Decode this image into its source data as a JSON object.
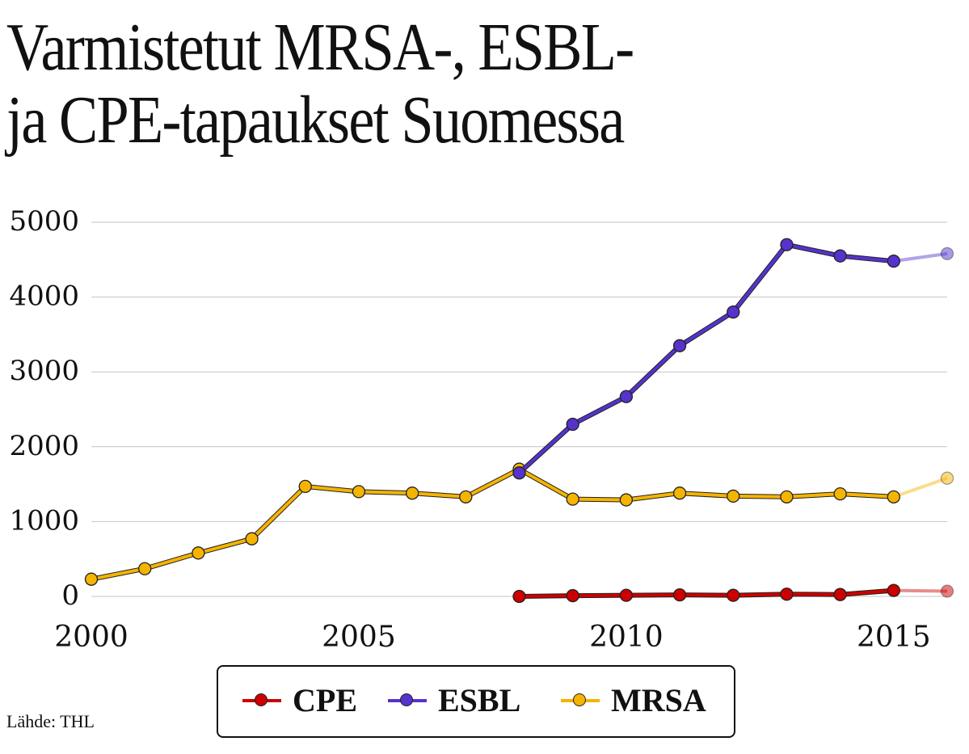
{
  "title_lines": [
    "Varmistetut MRSA-, ESBL-",
    "ja CPE-tapaukset Suomessa"
  ],
  "source": "Lähde: THL",
  "chart_data": {
    "type": "line",
    "title": "Varmistetut MRSA-, ESBL- ja CPE-tapaukset Suomessa",
    "xlabel": "",
    "ylabel": "",
    "xlim": [
      2000,
      2016
    ],
    "ylim": [
      0,
      5000
    ],
    "x_ticks": [
      "2000",
      "2005",
      "2010",
      "2015"
    ],
    "y_ticks": [
      "5000",
      "4000",
      "3000",
      "2000",
      "1000",
      "0"
    ],
    "grid": true,
    "legend_position": "bottom",
    "series": [
      {
        "name": "CPE",
        "color": "#cc0000",
        "x": [
          2008,
          2009,
          2010,
          2011,
          2012,
          2013,
          2014,
          2015,
          2016
        ],
        "y": [
          0,
          10,
          15,
          20,
          15,
          30,
          25,
          80,
          70
        ],
        "last_point_faded": true
      },
      {
        "name": "ESBL",
        "color": "#5533cc",
        "x": [
          2008,
          2009,
          2010,
          2011,
          2012,
          2013,
          2014,
          2015,
          2016
        ],
        "y": [
          1650,
          2300,
          2670,
          3350,
          3800,
          4700,
          4550,
          4480,
          4580
        ],
        "last_point_faded": true
      },
      {
        "name": "MRSA",
        "color": "#f5b400",
        "x": [
          2000,
          2001,
          2002,
          2003,
          2004,
          2005,
          2006,
          2007,
          2008,
          2009,
          2010,
          2011,
          2012,
          2013,
          2014,
          2015,
          2016
        ],
        "y": [
          230,
          370,
          580,
          770,
          1470,
          1400,
          1380,
          1330,
          1700,
          1300,
          1290,
          1380,
          1340,
          1330,
          1370,
          1330,
          1580
        ],
        "last_point_faded": true
      }
    ]
  }
}
